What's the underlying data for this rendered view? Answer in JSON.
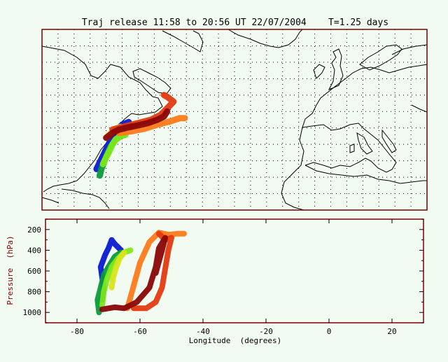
{
  "title": "Traj release 11:58 to 20:56 UT 22/07/2004    T=1.25 days",
  "colors": {
    "background": "#f2fbf2",
    "frame": "#7a0000",
    "coast": "#000000",
    "grid": "#000000",
    "tick_label": "#000000",
    "ylabel": "#7a0000"
  },
  "chart_data": [
    {
      "type": "map-trajectories",
      "panel": "map",
      "projection": "equirectangular",
      "grid": true,
      "grid_style": "dotted",
      "xlim": [
        -90,
        30
      ],
      "trajectory_colors": [
        "#0a1ad0",
        "#0a9a3a",
        "#7de81a",
        "#d8e41a",
        "#ff7a1a",
        "#e23a10",
        "#8a0606"
      ],
      "note_colors": "colour encodes release pressure level (blue = high altitude, dark red = low)",
      "trajectories": [
        {
          "color": "#0a1ad0",
          "lon": [
            -73.0,
            -72.0,
            -71.0,
            -70.0,
            -69.0,
            -68.0,
            -67.0,
            -66.0,
            -65.0,
            -63.0
          ],
          "lat": [
            27.5,
            29.5,
            31.5,
            33.5,
            35.5,
            37.5,
            39.0,
            40.0,
            41.0,
            41.8
          ]
        },
        {
          "color": "#0a9a3a",
          "lon": [
            -72.0,
            -71.5,
            -70.5,
            -69.5,
            -68.5,
            -67.0,
            -65.5,
            -64.0
          ],
          "lat": [
            25.5,
            27.5,
            30.0,
            32.5,
            34.5,
            36.5,
            37.5,
            38.0
          ]
        },
        {
          "color": "#7de81a",
          "lon": [
            -71.0,
            -70.0,
            -69.0,
            -68.0,
            -67.0,
            -65.5,
            -64.0
          ],
          "lat": [
            29.0,
            31.0,
            33.0,
            35.0,
            36.5,
            37.5,
            38.0
          ]
        },
        {
          "color": "#d8e41a",
          "lon": [
            -70.0,
            -69.0,
            -68.0,
            -67.0,
            -65.5
          ],
          "lat": [
            37.0,
            38.0,
            39.0,
            39.8,
            40.3
          ]
        },
        {
          "color": "#ff7a1a",
          "lon": [
            -66.0,
            -62.0,
            -58.0,
            -54.0,
            -50.0,
            -47.0,
            -45.5
          ],
          "lat": [
            38.5,
            39.0,
            39.8,
            41.0,
            42.0,
            43.0,
            43.0
          ]
        },
        {
          "color": "#e23a10",
          "lon": [
            -68.0,
            -64.0,
            -60.0,
            -56.0,
            -53.0,
            -51.0,
            -49.0,
            -51.0,
            -52.0
          ],
          "lat": [
            39.5,
            40.5,
            41.5,
            42.5,
            44.0,
            46.0,
            48.0,
            49.5,
            50.0
          ]
        },
        {
          "color": "#8a0606",
          "lon": [
            -70.0,
            -68.0,
            -66.0,
            -63.0,
            -60.0,
            -57.0,
            -54.0,
            -52.0,
            -51.0
          ],
          "lat": [
            37.0,
            38.5,
            39.5,
            40.2,
            40.8,
            41.5,
            42.5,
            43.5,
            45.0
          ]
        }
      ]
    },
    {
      "type": "line",
      "panel": "cross-section",
      "xlabel": "Longitude  (degrees)",
      "ylabel": "Pressure  (hPa)",
      "xlim": [
        -90,
        30
      ],
      "ylim": [
        1100,
        100
      ],
      "xticks": [
        -80,
        -60,
        -40,
        -20,
        0,
        20
      ],
      "yticks": [
        200,
        400,
        600,
        800,
        1000
      ],
      "series": [
        {
          "color": "#0a1ad0",
          "x": [
            -72.0,
            -71.5,
            -72.5,
            -71.0,
            -70.0,
            -69.0,
            -68.0,
            -66.0
          ],
          "y": [
            880,
            780,
            560,
            440,
            380,
            300,
            340,
            400
          ]
        },
        {
          "color": "#0a9a3a",
          "x": [
            -73.0,
            -73.5,
            -72.5,
            -71.5,
            -70.0,
            -68.0,
            -66.0
          ],
          "y": [
            1000,
            880,
            760,
            640,
            560,
            460,
            420
          ]
        },
        {
          "color": "#7de81a",
          "x": [
            -72.0,
            -71.5,
            -70.5,
            -69.0,
            -67.0,
            -65.0,
            -63.0
          ],
          "y": [
            930,
            800,
            680,
            560,
            480,
            420,
            400
          ]
        },
        {
          "color": "#d8e41a",
          "x": [
            -69.0,
            -68.5,
            -67.5,
            -66.5,
            -65.0
          ],
          "y": [
            760,
            660,
            560,
            480,
            420
          ]
        },
        {
          "color": "#ff7a1a",
          "x": [
            -64.0,
            -62.0,
            -60.0,
            -57.0,
            -54.0,
            -51.0,
            -48.0,
            -46.0
          ],
          "y": [
            960,
            740,
            520,
            320,
            230,
            250,
            240,
            240
          ]
        },
        {
          "color": "#e23a10",
          "x": [
            -62.0,
            -58.0,
            -55.0,
            -53.0,
            -52.0,
            -51.0,
            -50.0,
            -52.0,
            -54.0
          ],
          "y": [
            960,
            960,
            900,
            760,
            580,
            400,
            280,
            300,
            240
          ]
        },
        {
          "color": "#8a0606",
          "x": [
            -72.0,
            -68.0,
            -65.0,
            -61.0,
            -57.0,
            -55.0,
            -54.0,
            -52.0,
            -53.0,
            -55.0
          ],
          "y": [
            970,
            950,
            960,
            900,
            760,
            560,
            380,
            280,
            400,
            620
          ]
        }
      ]
    }
  ]
}
